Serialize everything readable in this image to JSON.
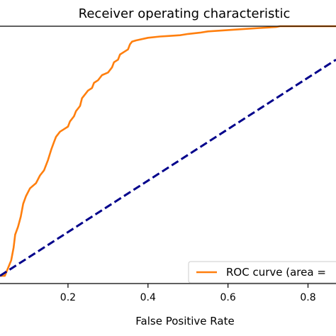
{
  "chart_data": {
    "type": "line",
    "title": "Receiver operating characteristic",
    "xlabel": "False Positive Rate",
    "ylabel": "",
    "xlim": [
      0.03,
      0.87
    ],
    "ylim": [
      0.0,
      1.0
    ],
    "grid": false,
    "legend_placement": "bottom-right",
    "x_ticks": [
      {
        "value": 0.2,
        "label": "0.2"
      },
      {
        "value": 0.4,
        "label": "0.4"
      },
      {
        "value": 0.6,
        "label": "0.6"
      },
      {
        "value": 0.8,
        "label": "0.8"
      }
    ],
    "series": [
      {
        "name": "ROC curve (area =",
        "color": "#ff7f0e",
        "style": "solid",
        "x": [
          0.03,
          0.042,
          0.05,
          0.058,
          0.064,
          0.068,
          0.075,
          0.082,
          0.088,
          0.095,
          0.105,
          0.12,
          0.13,
          0.14,
          0.15,
          0.158,
          0.165,
          0.17,
          0.18,
          0.19,
          0.2,
          0.205,
          0.215,
          0.22,
          0.23,
          0.235,
          0.245,
          0.25,
          0.26,
          0.265,
          0.275,
          0.285,
          0.3,
          0.31,
          0.315,
          0.325,
          0.33,
          0.34,
          0.35,
          0.355,
          0.36,
          0.37,
          0.4,
          0.43,
          0.45,
          0.48,
          0.5,
          0.53,
          0.55,
          0.58,
          0.6,
          0.62,
          0.65,
          0.68,
          0.7,
          0.72,
          0.73,
          0.75,
          0.8,
          0.85,
          0.87
        ],
        "y": [
          0.03,
          0.03,
          0.06,
          0.09,
          0.14,
          0.19,
          0.22,
          0.26,
          0.31,
          0.34,
          0.37,
          0.39,
          0.42,
          0.44,
          0.48,
          0.52,
          0.55,
          0.57,
          0.59,
          0.6,
          0.61,
          0.63,
          0.65,
          0.67,
          0.69,
          0.72,
          0.74,
          0.75,
          0.76,
          0.78,
          0.79,
          0.81,
          0.82,
          0.84,
          0.86,
          0.87,
          0.89,
          0.9,
          0.91,
          0.93,
          0.94,
          0.945,
          0.955,
          0.96,
          0.962,
          0.965,
          0.97,
          0.975,
          0.98,
          0.983,
          0.985,
          0.987,
          0.99,
          0.993,
          0.995,
          0.997,
          1.0,
          1.0,
          1.0,
          1.0,
          1.0
        ]
      },
      {
        "name": "",
        "color": "#00008b",
        "style": "dashed",
        "x": [
          0.03,
          0.87
        ],
        "y": [
          0.03,
          0.87
        ]
      }
    ]
  }
}
